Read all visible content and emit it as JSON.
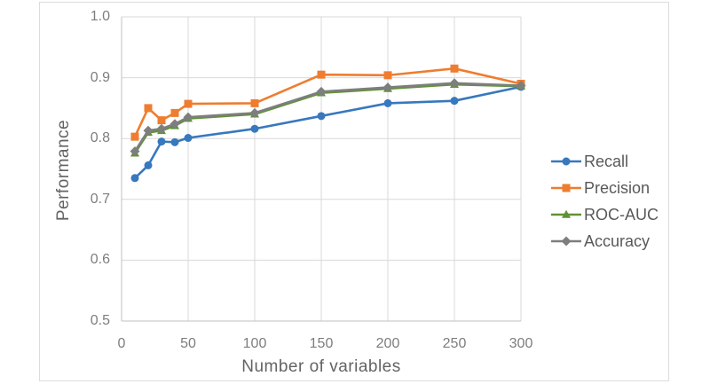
{
  "chart_data": {
    "type": "line",
    "title": "",
    "xlabel": "Number of variables",
    "ylabel": "Performance",
    "x": [
      10,
      20,
      30,
      40,
      50,
      100,
      150,
      200,
      250,
      300
    ],
    "series": [
      {
        "name": "Recall",
        "marker": "circle",
        "color": "#3778be",
        "values": [
          0.735,
          0.756,
          0.795,
          0.794,
          0.801,
          0.816,
          0.837,
          0.858,
          0.862,
          0.885
        ]
      },
      {
        "name": "Precision",
        "marker": "square",
        "color": "#ee7d30",
        "values": [
          0.803,
          0.85,
          0.83,
          0.842,
          0.857,
          0.858,
          0.905,
          0.904,
          0.915,
          0.89
        ]
      },
      {
        "name": "ROC-AUC",
        "marker": "triangle",
        "color": "#5f9335",
        "values": [
          0.776,
          0.81,
          0.813,
          0.821,
          0.833,
          0.84,
          0.875,
          0.882,
          0.889,
          0.886
        ]
      },
      {
        "name": "Accuracy",
        "marker": "diamond",
        "color": "#7e7e7e",
        "values": [
          0.779,
          0.813,
          0.816,
          0.824,
          0.835,
          0.842,
          0.877,
          0.884,
          0.891,
          0.887
        ]
      }
    ],
    "xlim": [
      0,
      300
    ],
    "ylim": [
      0.5,
      1.0
    ],
    "xticks": [
      "0",
      "50",
      "100",
      "150",
      "200",
      "250",
      "300"
    ],
    "yticks": [
      "1.0",
      "0.9",
      "0.8",
      "0.7",
      "0.6",
      "0.5"
    ],
    "grid": true,
    "legend_position": "right"
  },
  "colors": {
    "gridline": "#d9d9d9",
    "axis_line": "#c0c0c0",
    "tick_label": "#7d7d7d",
    "axis_title": "#636363",
    "legend_text": "#595959",
    "frame_border": "#dcdcdc"
  }
}
